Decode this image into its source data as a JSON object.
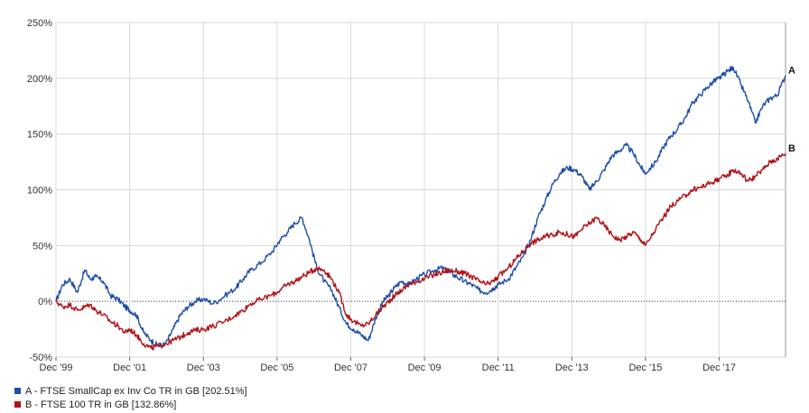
{
  "chart_data": {
    "type": "line",
    "title": "",
    "xlabel": "",
    "ylabel": "",
    "ylim": [
      -50,
      250
    ],
    "y_ticks": [
      "250%",
      "200%",
      "150%",
      "100%",
      "50%",
      "0%",
      "-50%"
    ],
    "y_tick_values": [
      250,
      200,
      150,
      100,
      50,
      0,
      -50
    ],
    "x_ticks": [
      "Dec '99",
      "Dec '01",
      "Dec '03",
      "Dec '05",
      "Dec '07",
      "Dec '09",
      "Dec '11",
      "Dec '13",
      "Dec '15",
      "Dec '17"
    ],
    "x_tick_values": [
      1999.92,
      2001.92,
      2003.92,
      2005.92,
      2007.92,
      2009.92,
      2011.92,
      2013.92,
      2015.92,
      2017.92
    ],
    "xlim": [
      1999.92,
      2019.72
    ],
    "grid": true,
    "zero_line": "dotted",
    "legend_position": "bottom-left",
    "series": [
      {
        "name": "A - FTSE SmallCap ex Inv Co TR in GB [202.51%]",
        "end_label": "A",
        "color": "#1f4fa8",
        "x": [
          1999.92,
          2000.1,
          2000.3,
          2000.5,
          2000.7,
          2000.85,
          2001.0,
          2001.2,
          2001.4,
          2001.6,
          2001.8,
          2001.92,
          2002.1,
          2002.3,
          2002.5,
          2002.7,
          2002.9,
          2003.1,
          2003.3,
          2003.5,
          2003.7,
          2003.92,
          2004.2,
          2004.5,
          2004.8,
          2005.0,
          2005.2,
          2005.5,
          2005.8,
          2006.0,
          2006.2,
          2006.4,
          2006.6,
          2006.8,
          2007.0,
          2007.2,
          2007.4,
          2007.6,
          2007.8,
          2008.0,
          2008.2,
          2008.4,
          2008.6,
          2008.8,
          2008.95,
          2009.1,
          2009.3,
          2009.5,
          2009.7,
          2009.92,
          2010.2,
          2010.4,
          2010.6,
          2010.8,
          2011.0,
          2011.2,
          2011.4,
          2011.6,
          2011.8,
          2011.92,
          2012.2,
          2012.4,
          2012.6,
          2012.8,
          2013.0,
          2013.2,
          2013.4,
          2013.6,
          2013.8,
          2014.0,
          2014.2,
          2014.4,
          2014.6,
          2014.8,
          2015.0,
          2015.2,
          2015.4,
          2015.6,
          2015.8,
          2015.92,
          2016.2,
          2016.4,
          2016.6,
          2016.8,
          2017.0,
          2017.2,
          2017.4,
          2017.6,
          2017.8,
          2017.92,
          2018.1,
          2018.3,
          2018.5,
          2018.7,
          2018.9,
          2019.1,
          2019.3,
          2019.5,
          2019.72
        ],
        "values": [
          0,
          15,
          20,
          8,
          28,
          20,
          22,
          18,
          5,
          2,
          -5,
          -8,
          -12,
          -28,
          -35,
          -40,
          -38,
          -25,
          -12,
          -5,
          0,
          2,
          -2,
          5,
          12,
          20,
          28,
          35,
          45,
          55,
          62,
          70,
          75,
          55,
          30,
          18,
          10,
          -5,
          -20,
          -25,
          -30,
          -35,
          -15,
          0,
          5,
          12,
          18,
          15,
          20,
          24,
          28,
          30,
          26,
          22,
          18,
          15,
          10,
          8,
          12,
          15,
          20,
          30,
          40,
          55,
          75,
          90,
          105,
          115,
          120,
          118,
          112,
          100,
          108,
          118,
          130,
          135,
          140,
          132,
          120,
          115,
          125,
          138,
          148,
          155,
          165,
          178,
          185,
          192,
          198,
          200,
          205,
          210,
          195,
          180,
          160,
          175,
          182,
          185,
          202.51
        ]
      },
      {
        "name": "B - FTSE 100 TR in GB [132.86%]",
        "end_label": "B",
        "color": "#b11218",
        "x": [
          1999.92,
          2000.1,
          2000.3,
          2000.5,
          2000.7,
          2000.85,
          2001.0,
          2001.2,
          2001.4,
          2001.6,
          2001.8,
          2001.92,
          2002.1,
          2002.3,
          2002.5,
          2002.7,
          2002.9,
          2003.1,
          2003.3,
          2003.5,
          2003.7,
          2003.92,
          2004.2,
          2004.5,
          2004.8,
          2005.0,
          2005.2,
          2005.5,
          2005.8,
          2006.0,
          2006.2,
          2006.4,
          2006.6,
          2006.8,
          2007.0,
          2007.2,
          2007.4,
          2007.6,
          2007.8,
          2008.0,
          2008.2,
          2008.4,
          2008.6,
          2008.8,
          2008.95,
          2009.1,
          2009.3,
          2009.5,
          2009.7,
          2009.92,
          2010.2,
          2010.4,
          2010.6,
          2010.8,
          2011.0,
          2011.2,
          2011.4,
          2011.6,
          2011.8,
          2011.92,
          2012.2,
          2012.4,
          2012.6,
          2012.8,
          2013.0,
          2013.2,
          2013.4,
          2013.6,
          2013.8,
          2014.0,
          2014.2,
          2014.4,
          2014.6,
          2014.8,
          2015.0,
          2015.2,
          2015.4,
          2015.6,
          2015.8,
          2015.92,
          2016.2,
          2016.4,
          2016.6,
          2016.8,
          2017.0,
          2017.2,
          2017.4,
          2017.6,
          2017.8,
          2017.92,
          2018.1,
          2018.3,
          2018.5,
          2018.7,
          2018.9,
          2019.1,
          2019.3,
          2019.5,
          2019.72
        ],
        "values": [
          0,
          -5,
          -3,
          -8,
          -5,
          -3,
          -8,
          -12,
          -18,
          -22,
          -28,
          -25,
          -30,
          -38,
          -42,
          -40,
          -38,
          -35,
          -32,
          -28,
          -26,
          -25,
          -22,
          -18,
          -12,
          -8,
          -2,
          2,
          6,
          10,
          15,
          18,
          22,
          26,
          30,
          28,
          20,
          8,
          -12,
          -18,
          -22,
          -20,
          -12,
          -5,
          0,
          5,
          10,
          15,
          18,
          20,
          24,
          26,
          28,
          27,
          25,
          22,
          18,
          15,
          18,
          22,
          30,
          38,
          45,
          52,
          55,
          58,
          60,
          62,
          60,
          58,
          65,
          70,
          75,
          68,
          60,
          55,
          58,
          62,
          55,
          50,
          65,
          75,
          85,
          90,
          95,
          100,
          102,
          105,
          108,
          110,
          112,
          118,
          115,
          108,
          112,
          118,
          125,
          128,
          132.86
        ]
      }
    ]
  }
}
